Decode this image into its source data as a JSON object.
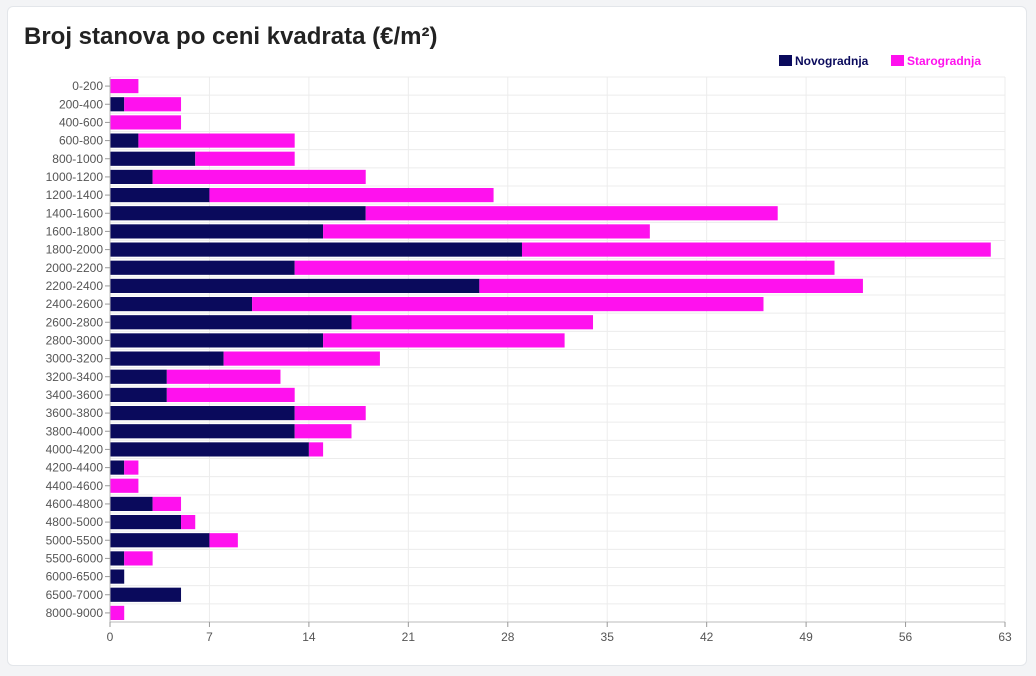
{
  "chart_data": {
    "type": "bar",
    "orientation": "horizontal",
    "stacked": true,
    "title": "Broj stanova po ceni kvadrata (€/m²)",
    "categories": [
      "0-200",
      "200-400",
      "400-600",
      "600-800",
      "800-1000",
      "1000-1200",
      "1200-1400",
      "1400-1600",
      "1600-1800",
      "1800-2000",
      "2000-2200",
      "2200-2400",
      "2400-2600",
      "2600-2800",
      "2800-3000",
      "3000-3200",
      "3200-3400",
      "3400-3600",
      "3600-3800",
      "3800-4000",
      "4000-4200",
      "4200-4400",
      "4400-4600",
      "4600-4800",
      "4800-5000",
      "5000-5500",
      "5500-6000",
      "6000-6500",
      "6500-7000",
      "8000-9000"
    ],
    "series": [
      {
        "name": "Novogradnja",
        "color": "#0a0a5c",
        "values": [
          0,
          1,
          0,
          2,
          6,
          3,
          7,
          18,
          15,
          29,
          13,
          26,
          10,
          17,
          15,
          8,
          4,
          4,
          13,
          13,
          14,
          1,
          0,
          3,
          5,
          7,
          1,
          1,
          5,
          0
        ]
      },
      {
        "name": "Starogradnja",
        "color": "#ff11ee",
        "values": [
          2,
          4,
          5,
          11,
          7,
          15,
          20,
          29,
          23,
          33,
          38,
          27,
          36,
          17,
          17,
          11,
          8,
          9,
          5,
          4,
          1,
          1,
          2,
          2,
          1,
          2,
          2,
          0,
          0,
          1
        ]
      }
    ],
    "xlim": [
      0,
      63
    ],
    "xticks": [
      0,
      7,
      14,
      21,
      28,
      35,
      42,
      49,
      56,
      63
    ],
    "xlabel": "",
    "ylabel": "",
    "grid": true,
    "legend": "top-right"
  }
}
